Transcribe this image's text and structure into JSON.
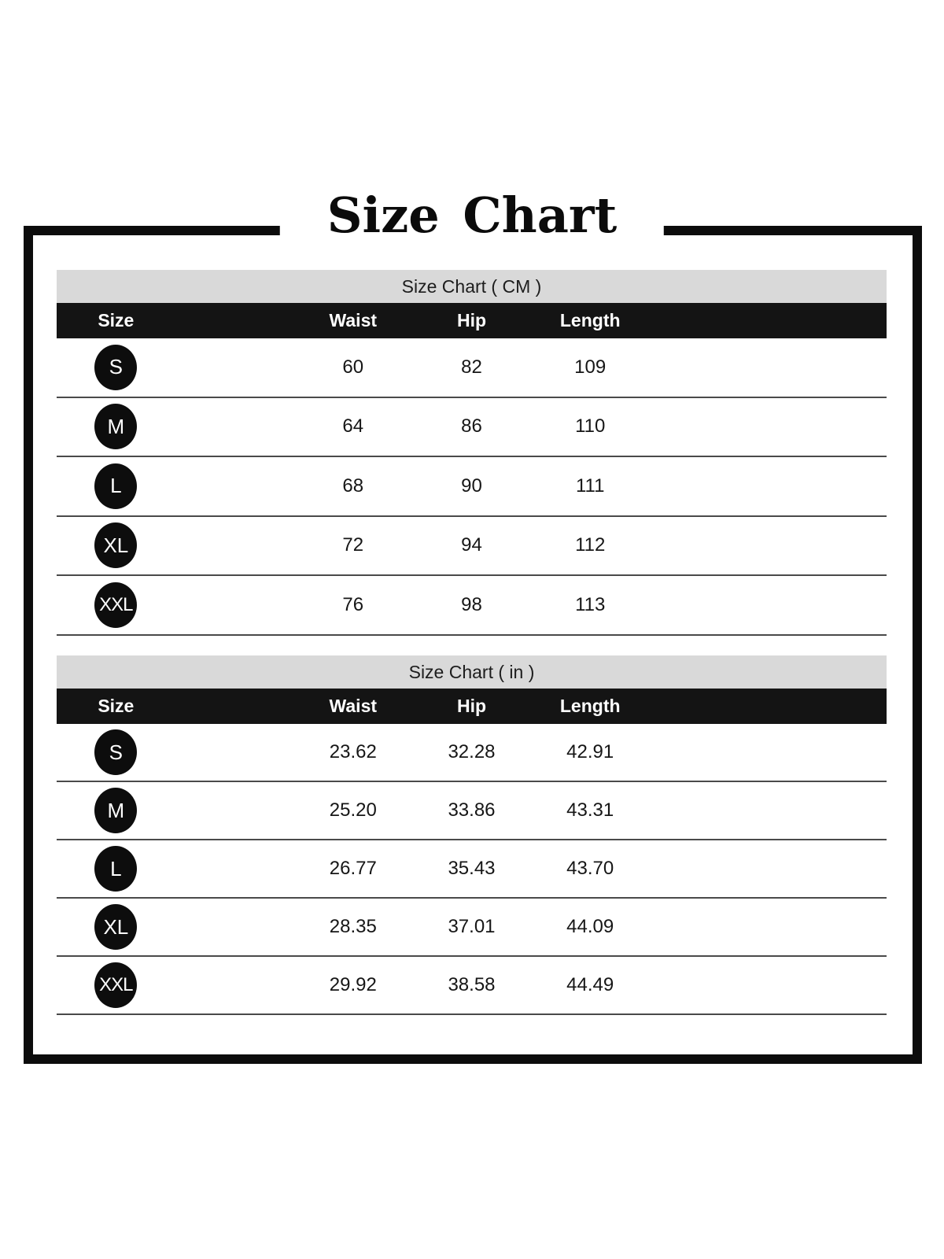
{
  "title": "Size Chart",
  "tables": [
    {
      "caption": "Size Chart ( CM )",
      "headers": {
        "size": "Size",
        "waist": "Waist",
        "hip": "Hip",
        "length": "Length"
      },
      "rows": [
        {
          "size": "S",
          "waist": "60",
          "hip": "82",
          "length": "109"
        },
        {
          "size": "M",
          "waist": "64",
          "hip": "86",
          "length": "110"
        },
        {
          "size": "L",
          "waist": "68",
          "hip": "90",
          "length": "111"
        },
        {
          "size": "XL",
          "waist": "72",
          "hip": "94",
          "length": "112"
        },
        {
          "size": "XXL",
          "waist": "76",
          "hip": "98",
          "length": "113"
        }
      ]
    },
    {
      "caption": "Size Chart ( in )",
      "headers": {
        "size": "Size",
        "waist": "Waist",
        "hip": "Hip",
        "length": "Length"
      },
      "rows": [
        {
          "size": "S",
          "waist": "23.62",
          "hip": "32.28",
          "length": "42.91"
        },
        {
          "size": "M",
          "waist": "25.20",
          "hip": "33.86",
          "length": "43.31"
        },
        {
          "size": "L",
          "waist": "26.77",
          "hip": "35.43",
          "length": "43.70"
        },
        {
          "size": "XL",
          "waist": "28.35",
          "hip": "37.01",
          "length": "44.09"
        },
        {
          "size": "XXL",
          "waist": "29.92",
          "hip": "38.58",
          "length": "44.49"
        }
      ]
    }
  ],
  "colors": {
    "frame_border": "#0c0c0c",
    "caption_band_bg": "#d9d9d9",
    "header_bg": "#141414",
    "badge_bg": "#0d0d0d",
    "divider": "#4a4a4a"
  }
}
